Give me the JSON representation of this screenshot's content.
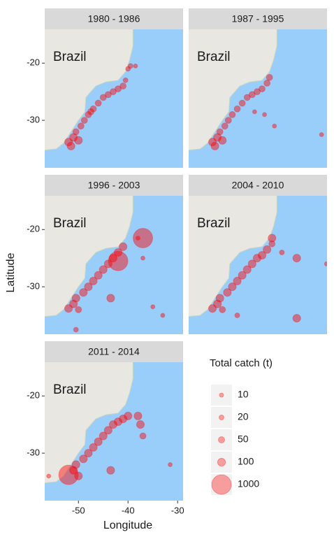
{
  "chart_data": {
    "type": "scatter",
    "annotation": "Brazil",
    "x_label": "Longitude",
    "y_label": "Latitude",
    "xlim": [
      -56.8,
      -28.9
    ],
    "ylim": [
      -38.3,
      -14.1
    ],
    "xticks": [
      -50,
      -40,
      -30
    ],
    "yticks": [
      -20,
      -30
    ],
    "color": "#ff0000",
    "facets": [
      {
        "title": "1980 - 1986",
        "x": [
          -52,
          -51.5,
          -51,
          -50.5,
          -50,
          -49.5,
          -48.8,
          -48,
          -47.5,
          -47,
          -46,
          -45,
          -44,
          -43,
          -42,
          -41,
          -40.5,
          -40,
          -39.5,
          -38.5
        ],
        "y": [
          -33.8,
          -34.5,
          -33,
          -32,
          -33.5,
          -31,
          -30,
          -29,
          -28.5,
          -28,
          -27,
          -26,
          -25.5,
          -25,
          -24.5,
          -24,
          -23,
          -21,
          -20.5,
          -20.5
        ],
        "size": [
          100,
          100,
          100,
          50,
          100,
          50,
          50,
          50,
          50,
          50,
          50,
          50,
          50,
          50,
          50,
          50,
          20,
          20,
          20,
          10
        ]
      },
      {
        "title": "1987 - 1995",
        "x": [
          -52,
          -51.5,
          -51,
          -50.5,
          -50,
          -49.5,
          -48.8,
          -48,
          -47,
          -46,
          -45,
          -44,
          -43,
          -42,
          -41,
          -40.5,
          -43.5,
          -41.5,
          -39.5,
          -30
        ],
        "y": [
          -33.8,
          -34.5,
          -33,
          -32,
          -33.5,
          -31,
          -30,
          -29,
          -28,
          -27,
          -26,
          -25.5,
          -25,
          -24.5,
          -23.5,
          -22.5,
          -28.5,
          -29,
          -31,
          -32.5
        ],
        "size": [
          100,
          100,
          100,
          50,
          100,
          50,
          50,
          50,
          50,
          50,
          50,
          50,
          50,
          50,
          50,
          50,
          10,
          10,
          10,
          10
        ]
      },
      {
        "title": "1996 - 2003",
        "x": [
          -52,
          -51,
          -50.5,
          -50,
          -49,
          -48,
          -47,
          -46,
          -45,
          -44,
          -43,
          -42,
          -41,
          -37,
          -42,
          -43.5,
          -38,
          -37,
          -35,
          -33,
          -50.5
        ],
        "y": [
          -33.8,
          -33,
          -32,
          -34,
          -31,
          -30,
          -29,
          -28,
          -27,
          -26,
          -25,
          -24,
          -23,
          -21.5,
          -25.5,
          -32,
          -21.5,
          -25,
          -33.5,
          -35,
          -37.5
        ],
        "size": [
          100,
          100,
          100,
          50,
          100,
          100,
          100,
          100,
          100,
          100,
          100,
          100,
          100,
          1000,
          1000,
          100,
          10,
          10,
          10,
          10,
          20
        ]
      },
      {
        "title": "2004 - 2010",
        "x": [
          -52,
          -51,
          -50.5,
          -50,
          -49,
          -48,
          -47,
          -46,
          -45,
          -44,
          -43,
          -42,
          -41,
          -40,
          -40,
          -35,
          -35,
          -29,
          -38,
          -47
        ],
        "y": [
          -33.8,
          -33,
          -32,
          -34,
          -31,
          -30,
          -29,
          -28,
          -27,
          -26,
          -25,
          -24.5,
          -23.5,
          -22.5,
          -21.5,
          -25,
          -35.5,
          -26,
          -24,
          -35
        ],
        "size": [
          100,
          100,
          100,
          50,
          100,
          100,
          100,
          100,
          100,
          100,
          100,
          100,
          100,
          50,
          100,
          100,
          100,
          10,
          20,
          20
        ]
      },
      {
        "title": "2011 - 2014",
        "x": [
          -52,
          -51,
          -50.5,
          -50,
          -49,
          -48,
          -47,
          -46,
          -45,
          -44,
          -43,
          -42,
          -41,
          -40,
          -38,
          -37.5,
          -37,
          -43.5,
          -31.5,
          -56
        ],
        "y": [
          -33.8,
          -33,
          -32,
          -34,
          -31,
          -30,
          -29,
          -28,
          -27,
          -26,
          -25,
          -24.5,
          -24,
          -23.5,
          -23.5,
          -25,
          -27,
          -33,
          -32,
          -34
        ],
        "size": [
          1000,
          100,
          100,
          100,
          100,
          100,
          100,
          100,
          100,
          100,
          100,
          100,
          100,
          100,
          100,
          100,
          50,
          100,
          10,
          10
        ]
      }
    ],
    "legend": {
      "title": "Total catch (t)",
      "sizes": [
        10,
        20,
        50,
        100,
        1000
      ]
    }
  }
}
